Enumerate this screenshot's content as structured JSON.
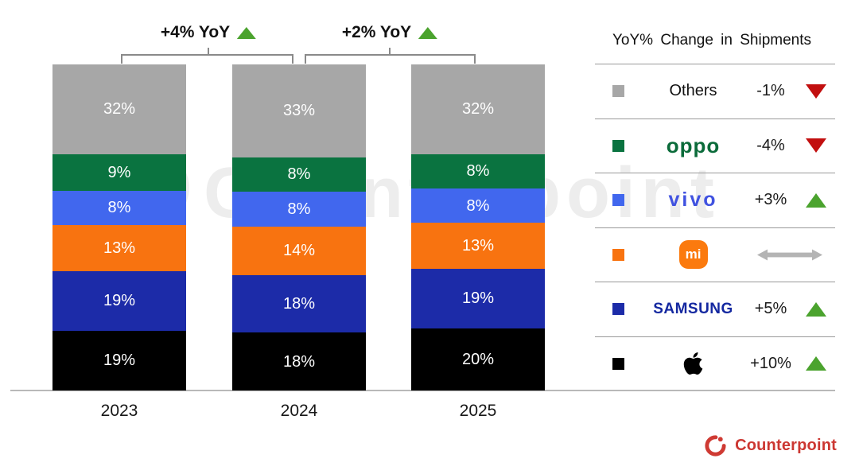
{
  "watermark": {
    "text": "Counterpoint"
  },
  "footer": {
    "brand": "Counterpoint"
  },
  "colors": {
    "up_triangle": "#4ba32e",
    "down_triangle": "#c20f0f",
    "flat_arrow": "#b4b4b4",
    "footer_red": "#cc3732"
  },
  "legend": {
    "title": "YoY% Change in Shipments",
    "rows": [
      {
        "name": "Others",
        "swatch": "#a7a7a7",
        "logo_type": "text",
        "logo_text": "Others",
        "change": "-1%",
        "direction": "down"
      },
      {
        "name": "OPPO",
        "swatch": "#0a7340",
        "logo_type": "oppo",
        "logo_text": "oppo",
        "change": "-4%",
        "direction": "down"
      },
      {
        "name": "vivo",
        "swatch": "#4167ee",
        "logo_type": "vivo",
        "logo_text": "vivo",
        "change": "+3%",
        "direction": "up"
      },
      {
        "name": "Xiaomi",
        "swatch": "#f87310",
        "logo_type": "mi",
        "logo_text": "mi",
        "change": "",
        "direction": "flat"
      },
      {
        "name": "Samsung",
        "swatch": "#1c2ba8",
        "logo_type": "samsung",
        "logo_text": "SAMSUNG",
        "change": "+5%",
        "direction": "up"
      },
      {
        "name": "Apple",
        "swatch": "#000000",
        "logo_type": "apple",
        "logo_text": "",
        "change": "+10%",
        "direction": "up"
      }
    ]
  },
  "chart_data": {
    "type": "bar",
    "stacked": true,
    "unit": "%",
    "categories": [
      "2023",
      "2024",
      "2025"
    ],
    "series": [
      {
        "name": "Others",
        "color": "#a7a7a7",
        "values": [
          32,
          33,
          32
        ]
      },
      {
        "name": "OPPO",
        "color": "#0a7340",
        "values": [
          9,
          8,
          8
        ]
      },
      {
        "name": "vivo",
        "color": "#4167ee",
        "values": [
          8,
          8,
          8
        ]
      },
      {
        "name": "Xiaomi",
        "color": "#f87310",
        "values": [
          13,
          14,
          13
        ]
      },
      {
        "name": "Samsung",
        "color": "#1c2ba8",
        "values": [
          19,
          18,
          19
        ]
      },
      {
        "name": "Apple",
        "color": "#000000",
        "values": [
          19,
          18,
          20
        ]
      }
    ],
    "annotations": [
      {
        "text": "+4% YoY",
        "symbol": "up",
        "from": "2023",
        "to": "2024"
      },
      {
        "text": "+2% YoY",
        "symbol": "up",
        "from": "2024",
        "to": "2025"
      }
    ],
    "legend_title": "YoY% Change in Shipments",
    "legend_position": "right",
    "grid": false
  }
}
